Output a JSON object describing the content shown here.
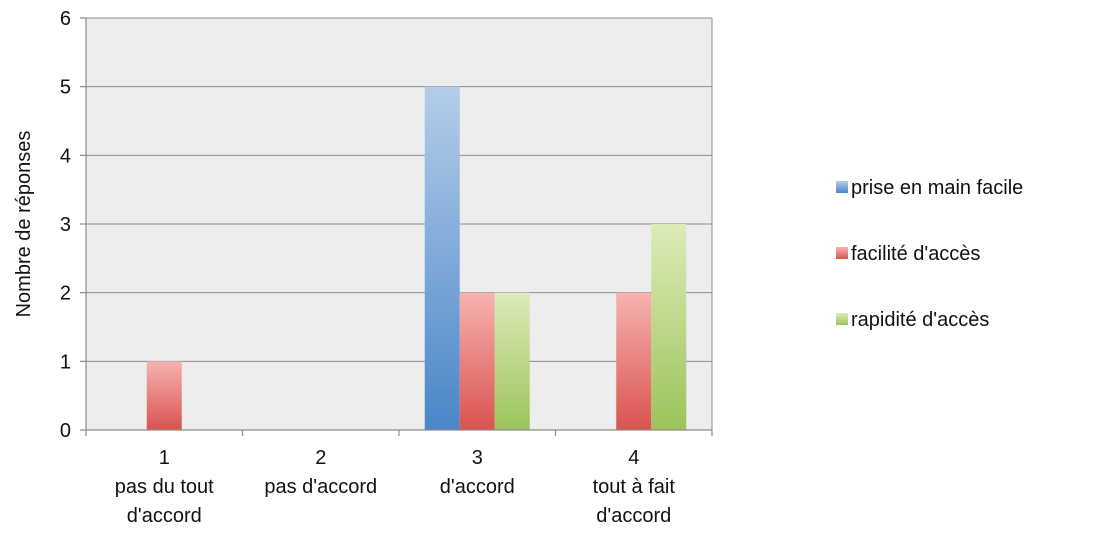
{
  "chart_data": {
    "type": "bar",
    "title": "",
    "xlabel": "",
    "ylabel": "Nombre de réponses",
    "ylim": [
      0,
      6
    ],
    "yticks": [
      "0",
      "1",
      "2",
      "3",
      "4",
      "5",
      "6"
    ],
    "grid": true,
    "legend_position": "right",
    "categories": [
      [
        "1",
        "pas du tout",
        "d'accord"
      ],
      [
        "2",
        "pas d'accord"
      ],
      [
        "3",
        "d'accord"
      ],
      [
        "4",
        "tout à fait",
        "d'accord"
      ]
    ],
    "series": [
      {
        "name": "prise en main facile",
        "values": [
          0,
          0,
          5,
          0
        ],
        "color": "#4a86c8",
        "color_light": "#b4cde9"
      },
      {
        "name": "facilité d'accès",
        "values": [
          1,
          0,
          2,
          2
        ],
        "color": "#d9534f",
        "color_light": "#f6b3b1"
      },
      {
        "name": "rapidité d'accès",
        "values": [
          0,
          0,
          2,
          3
        ],
        "color": "#9cc45a",
        "color_light": "#dcebb9"
      }
    ]
  }
}
